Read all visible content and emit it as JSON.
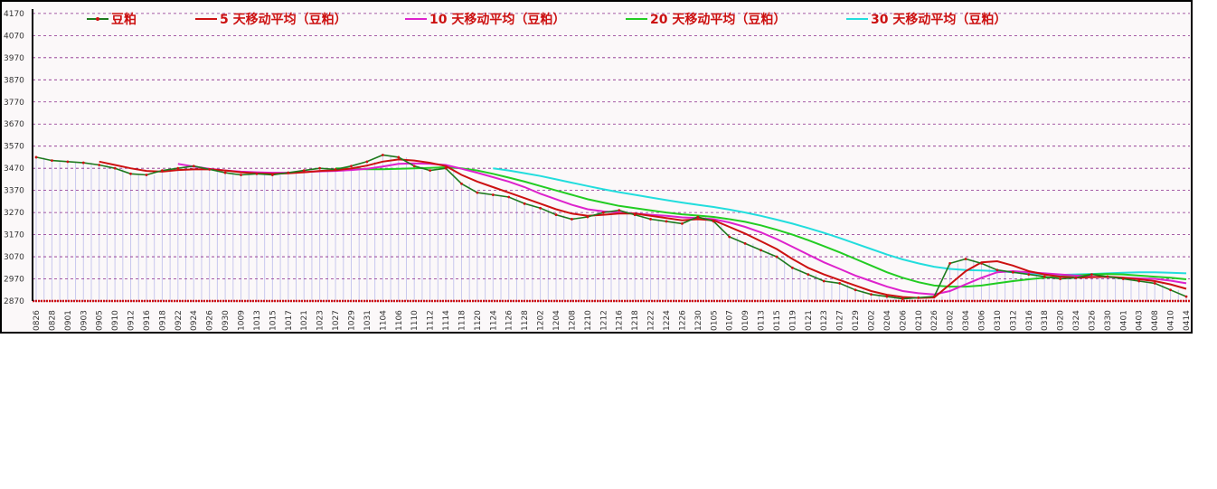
{
  "chart_data": {
    "type": "line",
    "ylim": [
      2870,
      4190
    ],
    "y_ticks": [
      2870,
      2970,
      3070,
      3170,
      3270,
      3370,
      3470,
      3570,
      3670,
      3770,
      3870,
      3970,
      4070,
      4170
    ],
    "x_ticks": [
      "0826",
      "0828",
      "0901",
      "0903",
      "0905",
      "0910",
      "0912",
      "0916",
      "0918",
      "0922",
      "0924",
      "0926",
      "0930",
      "1009",
      "1013",
      "1015",
      "1017",
      "1021",
      "1023",
      "1027",
      "1029",
      "1031",
      "1104",
      "1106",
      "1110",
      "1112",
      "1114",
      "1118",
      "1120",
      "1124",
      "1126",
      "1128",
      "1202",
      "1204",
      "1208",
      "1210",
      "1212",
      "1216",
      "1218",
      "1222",
      "1224",
      "1226",
      "1230",
      "0105",
      "0107",
      "0109",
      "0113",
      "0115",
      "0119",
      "0121",
      "0123",
      "0127",
      "0129",
      "0202",
      "0204",
      "0206",
      "0210",
      "0226",
      "0302",
      "0304",
      "0306",
      "0310",
      "0312",
      "0316",
      "0318",
      "0320",
      "0324",
      "0326",
      "0330",
      "0401",
      "0403",
      "0408",
      "0410",
      "0414"
    ],
    "grid": true,
    "legend_position": "top",
    "series": [
      {
        "name": "豆粕",
        "color": "#1e7a1e",
        "values": [
          3520,
          3505,
          3500,
          3495,
          3485,
          3470,
          3445,
          3440,
          3460,
          3470,
          3480,
          3465,
          3450,
          3440,
          3445,
          3440,
          3450,
          3460,
          3470,
          3465,
          3480,
          3500,
          3530,
          3520,
          3480,
          3460,
          3470,
          3400,
          3360,
          3350,
          3340,
          3310,
          3290,
          3260,
          3240,
          3250,
          3270,
          3280,
          3260,
          3240,
          3230,
          3220,
          3250,
          3230,
          3160,
          3130,
          3100,
          3070,
          3020,
          2990,
          2960,
          2950,
          2920,
          2900,
          2890,
          2880,
          2885,
          2890,
          3040,
          3060,
          3040,
          3010,
          3000,
          2990,
          2980,
          2970,
          2975,
          2990,
          2980,
          2970,
          2960,
          2950,
          2920,
          2890
        ],
        "color_hex": "#1e7a1e"
      },
      {
        "name": "5 天移动平均（豆粕）",
        "color": "#cc1111",
        "values": [
          null,
          null,
          null,
          null,
          3500,
          3485,
          3470,
          3458,
          3455,
          3462,
          3465,
          3466,
          3460,
          3452,
          3447,
          3445,
          3447,
          3452,
          3458,
          3461,
          3469,
          3482,
          3500,
          3510,
          3505,
          3495,
          3480,
          3440,
          3410,
          3385,
          3360,
          3335,
          3310,
          3285,
          3265,
          3255,
          3260,
          3265,
          3265,
          3255,
          3245,
          3235,
          3240,
          3235,
          3205,
          3175,
          3140,
          3105,
          3060,
          3020,
          2990,
          2965,
          2940,
          2915,
          2898,
          2888,
          2884,
          2886,
          2945,
          3005,
          3045,
          3050,
          3030,
          3005,
          2990,
          2980,
          2975,
          2978,
          2980,
          2975,
          2968,
          2960,
          2945,
          2925
        ],
        "color_hex": "#cc1111"
      },
      {
        "name": "10 天移动平均（豆粕）",
        "color": "#dd22cc",
        "values": [
          null,
          null,
          null,
          null,
          null,
          null,
          null,
          null,
          null,
          3490,
          3478,
          3468,
          3460,
          3455,
          3452,
          3450,
          3450,
          3453,
          3456,
          3458,
          3462,
          3468,
          3478,
          3490,
          3492,
          3490,
          3485,
          3468,
          3450,
          3430,
          3410,
          3385,
          3355,
          3330,
          3305,
          3285,
          3275,
          3270,
          3265,
          3260,
          3255,
          3248,
          3245,
          3240,
          3225,
          3205,
          3180,
          3150,
          3115,
          3080,
          3045,
          3015,
          2985,
          2960,
          2935,
          2915,
          2905,
          2900,
          2915,
          2945,
          2975,
          3000,
          3005,
          3000,
          2995,
          2990,
          2985,
          2980,
          2978,
          2975,
          2972,
          2970,
          2962,
          2950
        ],
        "color_hex": "#dd22cc"
      },
      {
        "name": "20 天移动平均（豆粕）",
        "color": "#22cc22",
        "values": [
          null,
          null,
          null,
          null,
          null,
          null,
          null,
          null,
          null,
          null,
          null,
          null,
          null,
          null,
          null,
          null,
          null,
          null,
          null,
          3470,
          3468,
          3466,
          3466,
          3468,
          3470,
          3472,
          3475,
          3470,
          3460,
          3445,
          3428,
          3410,
          3390,
          3370,
          3350,
          3330,
          3315,
          3300,
          3290,
          3280,
          3270,
          3262,
          3256,
          3250,
          3240,
          3228,
          3212,
          3192,
          3170,
          3145,
          3118,
          3090,
          3060,
          3030,
          3000,
          2975,
          2955,
          2940,
          2935,
          2935,
          2940,
          2950,
          2960,
          2968,
          2975,
          2980,
          2985,
          2990,
          2992,
          2990,
          2985,
          2980,
          2975,
          2968
        ],
        "color_hex": "#22cc22"
      },
      {
        "name": "30 天移动平均（豆粕）",
        "color": "#22dddd",
        "values": [
          null,
          null,
          null,
          null,
          null,
          null,
          null,
          null,
          null,
          null,
          null,
          null,
          null,
          null,
          null,
          null,
          null,
          null,
          null,
          null,
          null,
          null,
          null,
          null,
          null,
          null,
          null,
          null,
          null,
          3470,
          3460,
          3448,
          3435,
          3420,
          3405,
          3390,
          3375,
          3362,
          3350,
          3338,
          3326,
          3315,
          3305,
          3295,
          3283,
          3270,
          3255,
          3238,
          3220,
          3200,
          3178,
          3155,
          3130,
          3105,
          3080,
          3058,
          3040,
          3025,
          3015,
          3010,
          3008,
          3005,
          3000,
          2995,
          2990,
          2988,
          2990,
          2992,
          2995,
          2998,
          3000,
          3000,
          2998,
          2995
        ],
        "color_hex": "#22dddd"
      }
    ]
  },
  "legend": [
    {
      "label": "豆粕",
      "color": "#cc1111",
      "line": "#1e7a1e"
    },
    {
      "label": "5 天移动平均（豆粕）",
      "color": "#cc1111",
      "line": "#cc1111"
    },
    {
      "label": "10 天移动平均（豆粕）",
      "color": "#cc1111",
      "line": "#dd22cc"
    },
    {
      "label": "20 天移动平均（豆粕）",
      "color": "#cc1111",
      "line": "#22cc22"
    },
    {
      "label": "30 天移动平均（豆粕）",
      "color": "#cc1111",
      "line": "#22dddd"
    }
  ],
  "colors": {
    "grid": "#8a2a8a",
    "bars": "#c8c8ee",
    "axis": "#000000",
    "background": "#fbf8f9"
  }
}
